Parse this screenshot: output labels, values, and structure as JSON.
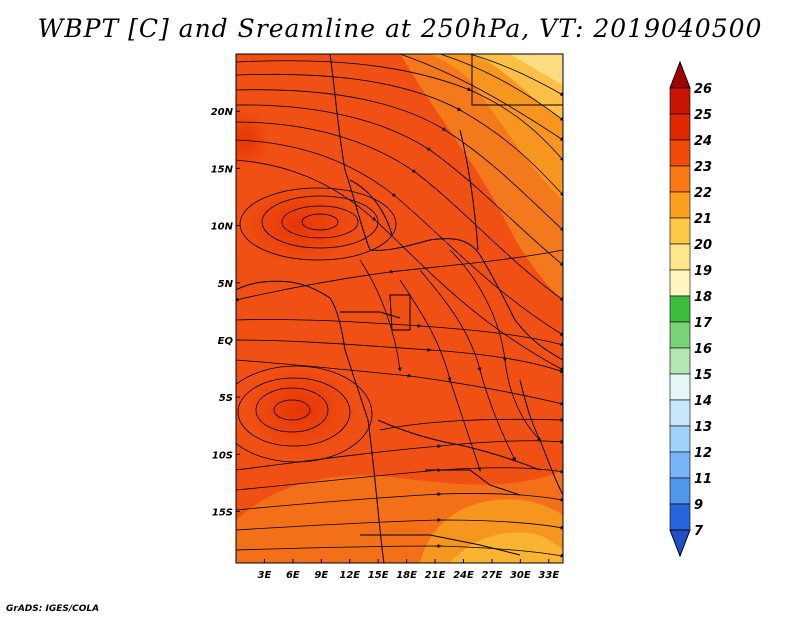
{
  "title": "WBPT [C] and Sreamline at 250hPa, VT: 2019040500",
  "credit": "GrADS: IGES/COLA",
  "map": {
    "lon_labels": [
      "3E",
      "6E",
      "9E",
      "12E",
      "15E",
      "18E",
      "21E",
      "24E",
      "27E",
      "30E",
      "33E"
    ],
    "lat_labels": [
      "20N",
      "15N",
      "10N",
      "5N",
      "EQ",
      "5S",
      "10S",
      "15S"
    ],
    "lon_range": [
      0,
      34.5
    ],
    "lat_range": [
      -19.5,
      25
    ],
    "field": "WBPT",
    "field_units": "C",
    "level": "250hPa"
  },
  "colorbar": {
    "labels": [
      "26",
      "25",
      "24",
      "23",
      "22",
      "21",
      "20",
      "19",
      "18",
      "17",
      "16",
      "15",
      "14",
      "13",
      "12",
      "11",
      "9",
      "7"
    ],
    "colors": [
      "#a00000",
      "#c81400",
      "#e02800",
      "#f04b0a",
      "#f87814",
      "#faa01e",
      "#fcc846",
      "#fee68c",
      "#fff5c0",
      "#3cbe3c",
      "#78d278",
      "#b4e6b4",
      "#e6f5f5",
      "#c8e6fa",
      "#a0d2fa",
      "#78b4f5",
      "#5096eb",
      "#2864dc",
      "#1e50c8"
    ]
  }
}
